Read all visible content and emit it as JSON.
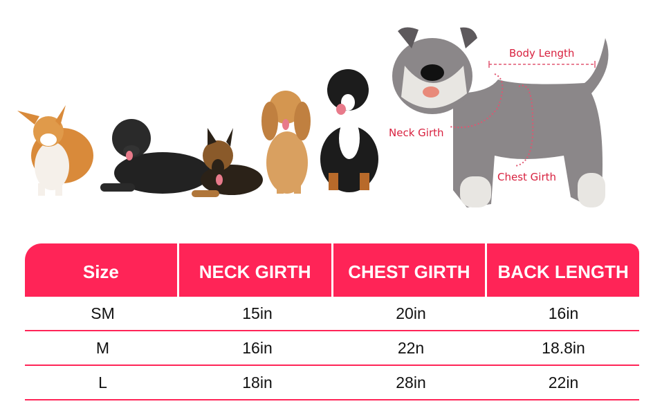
{
  "diagram": {
    "labels": {
      "body_length": "Body Length",
      "neck_girth": "Neck Girth",
      "chest_girth": "Chest Girth"
    },
    "label_color": "#d8213f"
  },
  "size_table": {
    "header_color": "#ff2457",
    "headers": [
      "Size",
      "NECK GIRTH",
      "CHEST GIRTH",
      "BACK LENGTH"
    ],
    "rows": [
      [
        "SM",
        "15in",
        "20in",
        "16in"
      ],
      [
        "M",
        "16in",
        "22n",
        "18.8in"
      ],
      [
        "L",
        "18in",
        "28in",
        "22in"
      ]
    ]
  }
}
